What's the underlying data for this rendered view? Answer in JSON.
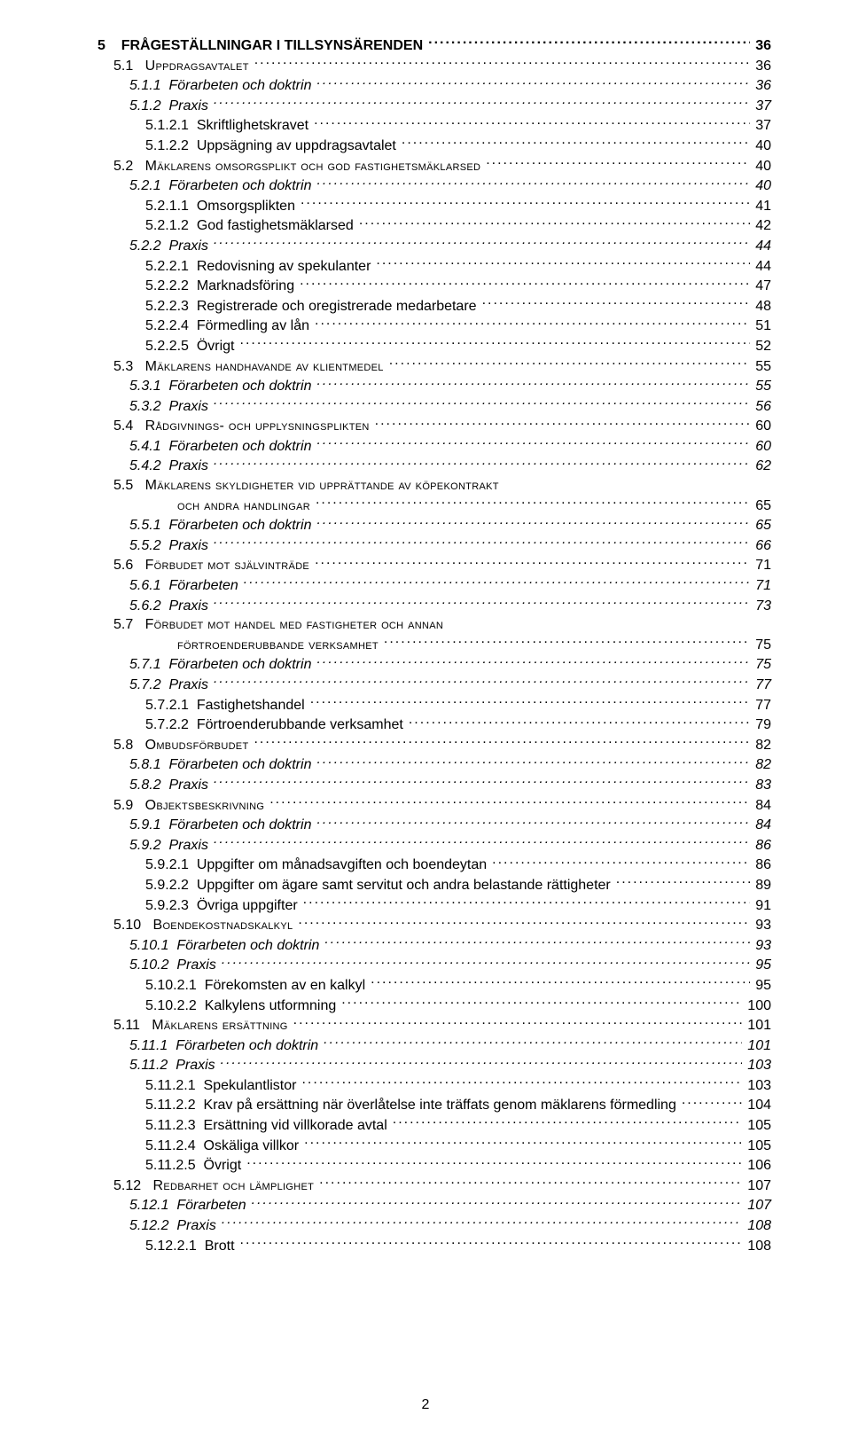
{
  "page_number": "2",
  "toc": [
    {
      "level": 0,
      "num": "5",
      "text": "FRÅGESTÄLLNINGAR I TILLSYNSÄRENDEN",
      "page": "36"
    },
    {
      "level": 1,
      "num": "5.1",
      "text": "Uppdragsavtalet",
      "page": "36",
      "smallcaps": true
    },
    {
      "level": 2,
      "num": "5.1.1",
      "text": "Förarbeten och doktrin",
      "page": "36"
    },
    {
      "level": 2,
      "num": "5.1.2",
      "text": "Praxis",
      "page": "37"
    },
    {
      "level": 3,
      "num": "5.1.2.1",
      "text": "Skriftlighetskravet",
      "page": "37"
    },
    {
      "level": 3,
      "num": "5.1.2.2",
      "text": "Uppsägning av uppdragsavtalet",
      "page": "40"
    },
    {
      "level": 1,
      "num": "5.2",
      "text": "Mäklarens omsorgsplikt och god fastighetsmäklarsed",
      "page": "40",
      "smallcaps": true
    },
    {
      "level": 2,
      "num": "5.2.1",
      "text": "Förarbeten och doktrin",
      "page": "40"
    },
    {
      "level": 3,
      "num": "5.2.1.1",
      "text": "Omsorgsplikten",
      "page": "41"
    },
    {
      "level": 3,
      "num": "5.2.1.2",
      "text": "God fastighetsmäklarsed",
      "page": "42"
    },
    {
      "level": 2,
      "num": "5.2.2",
      "text": "Praxis",
      "page": "44"
    },
    {
      "level": 3,
      "num": "5.2.2.1",
      "text": "Redovisning av spekulanter",
      "page": "44"
    },
    {
      "level": 3,
      "num": "5.2.2.2",
      "text": "Marknadsföring",
      "page": "47"
    },
    {
      "level": 3,
      "num": "5.2.2.3",
      "text": "Registrerade och oregistrerade medarbetare",
      "page": "48"
    },
    {
      "level": 3,
      "num": "5.2.2.4",
      "text": "Förmedling av lån",
      "page": "51"
    },
    {
      "level": 3,
      "num": "5.2.2.5",
      "text": "Övrigt",
      "page": "52"
    },
    {
      "level": 1,
      "num": "5.3",
      "text": "Mäklarens handhavande av klientmedel",
      "page": "55",
      "smallcaps": true
    },
    {
      "level": 2,
      "num": "5.3.1",
      "text": "Förarbeten och doktrin",
      "page": "55"
    },
    {
      "level": 2,
      "num": "5.3.2",
      "text": "Praxis",
      "page": "56"
    },
    {
      "level": 1,
      "num": "5.4",
      "text": "Rådgivnings- och upplysningsplikten",
      "page": "60",
      "smallcaps": true
    },
    {
      "level": 2,
      "num": "5.4.1",
      "text": "Förarbeten och doktrin",
      "page": "60"
    },
    {
      "level": 2,
      "num": "5.4.2",
      "text": "Praxis",
      "page": "62"
    },
    {
      "level": 1,
      "num": "5.5",
      "text": "Mäklarens skyldigheter vid upprättande av köpekontrakt",
      "page": "",
      "smallcaps": true,
      "nodots": true
    },
    {
      "level": "sub",
      "num": "",
      "text": "och andra handlingar",
      "page": "65",
      "smallcaps": true
    },
    {
      "level": 2,
      "num": "5.5.1",
      "text": "Förarbeten och doktrin",
      "page": "65"
    },
    {
      "level": 2,
      "num": "5.5.2",
      "text": "Praxis",
      "page": "66"
    },
    {
      "level": 1,
      "num": "5.6",
      "text": "Förbudet mot självinträde",
      "page": "71",
      "smallcaps": true
    },
    {
      "level": 2,
      "num": "5.6.1",
      "text": "Förarbeten",
      "page": "71"
    },
    {
      "level": 2,
      "num": "5.6.2",
      "text": "Praxis",
      "page": "73"
    },
    {
      "level": 1,
      "num": "5.7",
      "text": "Förbudet mot handel med fastigheter och annan",
      "page": "",
      "smallcaps": true,
      "nodots": true
    },
    {
      "level": "sub",
      "num": "",
      "text": "förtroenderubbande verksamhet",
      "page": "75",
      "smallcaps": true
    },
    {
      "level": 2,
      "num": "5.7.1",
      "text": "Förarbeten och doktrin",
      "page": "75"
    },
    {
      "level": 2,
      "num": "5.7.2",
      "text": "Praxis",
      "page": "77"
    },
    {
      "level": 3,
      "num": "5.7.2.1",
      "text": "Fastighetshandel",
      "page": "77"
    },
    {
      "level": 3,
      "num": "5.7.2.2",
      "text": "Förtroenderubbande verksamhet",
      "page": "79"
    },
    {
      "level": 1,
      "num": "5.8",
      "text": "Ombudsförbudet",
      "page": "82",
      "smallcaps": true
    },
    {
      "level": 2,
      "num": "5.8.1",
      "text": "Förarbeten och doktrin",
      "page": "82"
    },
    {
      "level": 2,
      "num": "5.8.2",
      "text": "Praxis",
      "page": "83"
    },
    {
      "level": 1,
      "num": "5.9",
      "text": "Objektsbeskrivning",
      "page": "84",
      "smallcaps": true
    },
    {
      "level": 2,
      "num": "5.9.1",
      "text": "Förarbeten och doktrin",
      "page": "84"
    },
    {
      "level": 2,
      "num": "5.9.2",
      "text": "Praxis",
      "page": "86"
    },
    {
      "level": 3,
      "num": "5.9.2.1",
      "text": "Uppgifter om månadsavgiften och boendeytan",
      "page": "86"
    },
    {
      "level": 3,
      "num": "5.9.2.2",
      "text": "Uppgifter om ägare samt servitut och andra belastande rättigheter",
      "page": "89"
    },
    {
      "level": 3,
      "num": "5.9.2.3",
      "text": "Övriga uppgifter",
      "page": "91"
    },
    {
      "level": 1,
      "num": "5.10",
      "text": "Boendekostnadskalkyl",
      "page": "93",
      "smallcaps": true
    },
    {
      "level": 2,
      "num": "5.10.1",
      "text": "Förarbeten och doktrin",
      "page": "93"
    },
    {
      "level": 2,
      "num": "5.10.2",
      "text": "Praxis",
      "page": "95"
    },
    {
      "level": 3,
      "num": "5.10.2.1",
      "text": "Förekomsten av en kalkyl",
      "page": "95"
    },
    {
      "level": 3,
      "num": "5.10.2.2",
      "text": "Kalkylens utformning",
      "page": "100"
    },
    {
      "level": 1,
      "num": "5.11",
      "text": "Mäklarens ersättning",
      "page": "101",
      "smallcaps": true
    },
    {
      "level": 2,
      "num": "5.11.1",
      "text": "Förarbeten och doktrin",
      "page": "101"
    },
    {
      "level": 2,
      "num": "5.11.2",
      "text": "Praxis",
      "page": "103"
    },
    {
      "level": 3,
      "num": "5.11.2.1",
      "text": "Spekulantlistor",
      "page": "103"
    },
    {
      "level": 3,
      "num": "5.11.2.2",
      "text": "Krav på ersättning när överlåtelse inte träffats genom mäklarens förmedling",
      "page": "104"
    },
    {
      "level": 3,
      "num": "5.11.2.3",
      "text": "Ersättning vid villkorade avtal",
      "page": "105"
    },
    {
      "level": 3,
      "num": "5.11.2.4",
      "text": "Oskäliga villkor",
      "page": "105"
    },
    {
      "level": 3,
      "num": "5.11.2.5",
      "text": "Övrigt",
      "page": "106"
    },
    {
      "level": 1,
      "num": "5.12",
      "text": "Redbarhet och lämplighet",
      "page": "107",
      "smallcaps": true
    },
    {
      "level": 2,
      "num": "5.12.1",
      "text": "Förarbeten",
      "page": "107"
    },
    {
      "level": 2,
      "num": "5.12.2",
      "text": "Praxis",
      "page": "108"
    },
    {
      "level": 3,
      "num": "5.12.2.1",
      "text": "Brott",
      "page": "108"
    }
  ]
}
